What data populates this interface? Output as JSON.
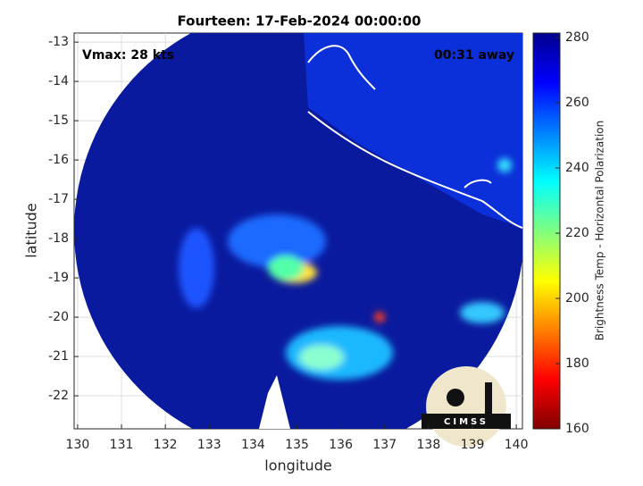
{
  "chart_data": {
    "type": "image",
    "title": "Fourteen: 17-Feb-2024 00:00:00",
    "annotations": [
      "Vmax: 28 kts",
      "00:31 away"
    ],
    "xlabel": "longitude",
    "ylabel": "latitude",
    "xlim": [
      129.92,
      140.14
    ],
    "ylim": [
      -22.84,
      -12.77
    ],
    "xticks": [
      130,
      131,
      132,
      133,
      134,
      135,
      136,
      137,
      138,
      139,
      140
    ],
    "yticks": [
      -22,
      -21,
      -20,
      -19,
      -18,
      -17,
      -16,
      -15,
      -14,
      -13
    ],
    "grid": true,
    "colorbar": {
      "label": "Brightness Temp - Horizontal Polarization",
      "lim": [
        160,
        281.4
      ],
      "ticks": [
        160,
        180,
        200,
        220,
        240,
        260,
        280
      ],
      "colormap": "jet"
    },
    "logo": "CIMSS"
  }
}
